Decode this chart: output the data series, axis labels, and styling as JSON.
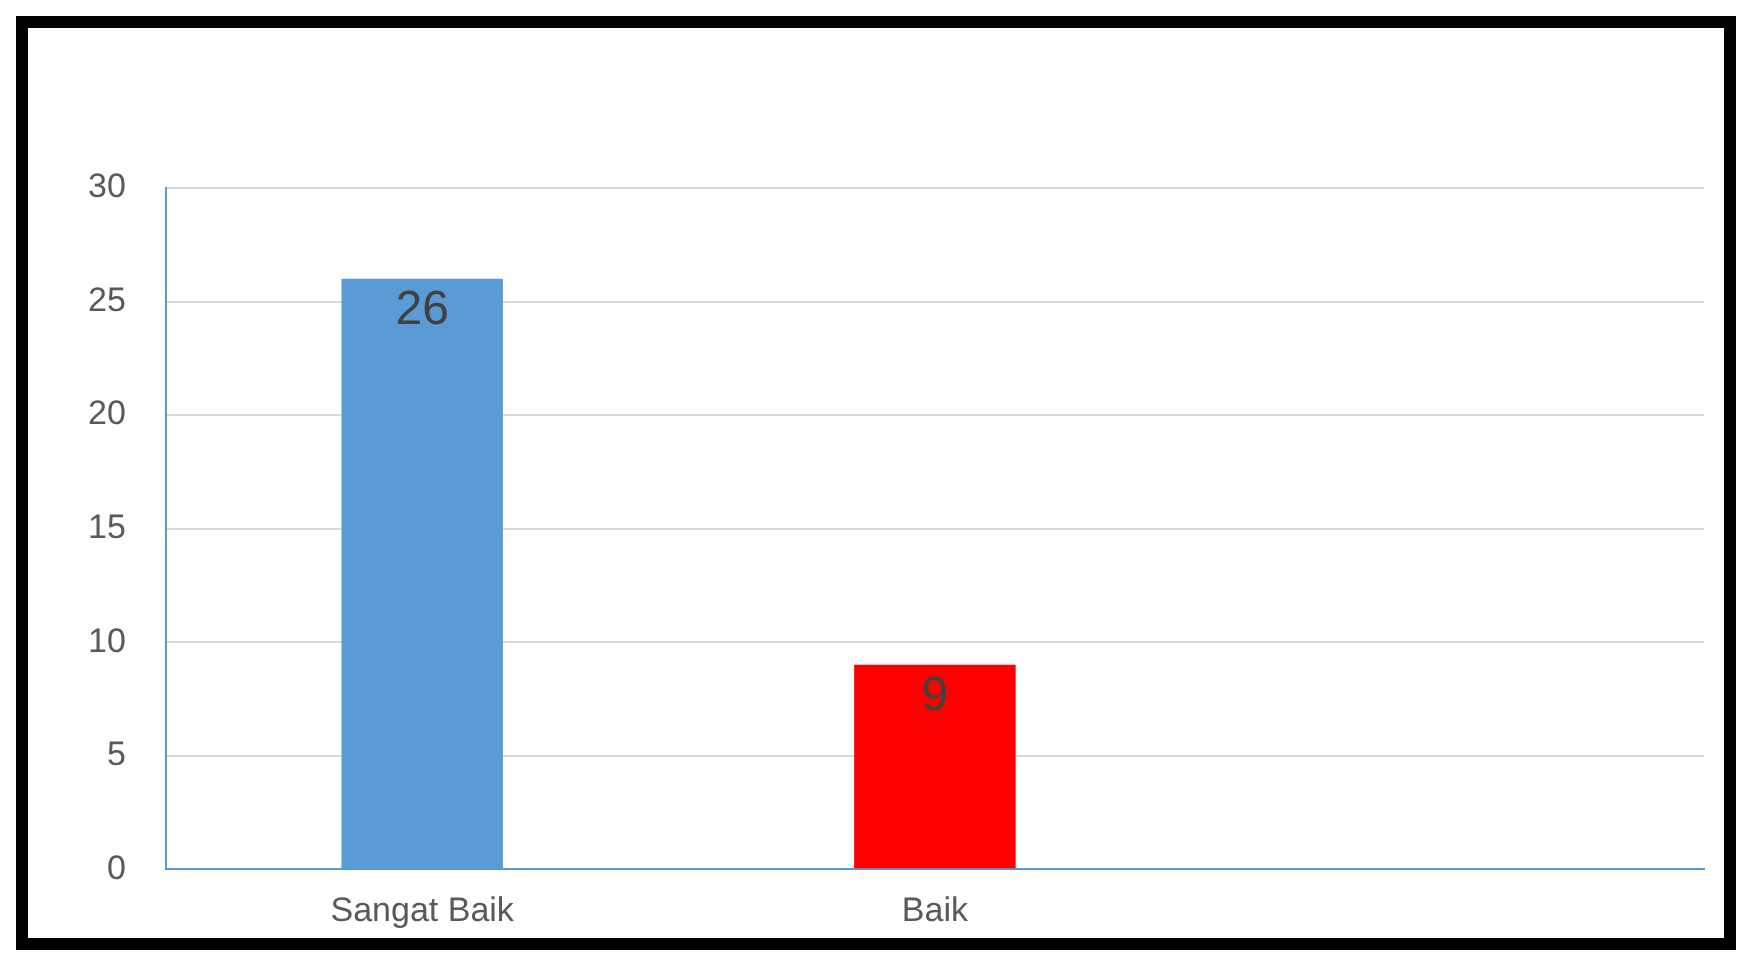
{
  "chart_data": {
    "type": "bar",
    "categories": [
      "Sangat Baik",
      "Baik",
      null
    ],
    "values": [
      26,
      9,
      null
    ],
    "colors": [
      "#5b9bd5",
      "#ff0000",
      "#a5a5a5"
    ],
    "ylim": [
      0,
      30
    ],
    "yticks": [
      0,
      5,
      10,
      15,
      20,
      25,
      30
    ],
    "grid": "y",
    "data_labels": true
  }
}
